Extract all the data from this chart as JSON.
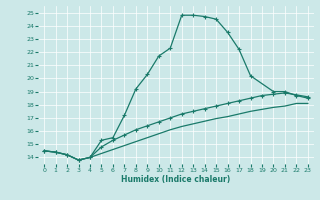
{
  "xlabel": "Humidex (Indice chaleur)",
  "bg_color": "#cce8e8",
  "grid_color": "#ffffff",
  "line_color": "#1a7a6a",
  "xlim": [
    -0.5,
    23.5
  ],
  "ylim": [
    13.5,
    25.5
  ],
  "xticks": [
    0,
    1,
    2,
    3,
    4,
    5,
    6,
    7,
    8,
    9,
    10,
    11,
    12,
    13,
    14,
    15,
    16,
    17,
    18,
    19,
    20,
    21,
    22,
    23
  ],
  "yticks": [
    14,
    15,
    16,
    17,
    18,
    19,
    20,
    21,
    22,
    23,
    24,
    25
  ],
  "line1_x": [
    0,
    1,
    2,
    3,
    4,
    5,
    6,
    7,
    8,
    9,
    10,
    11,
    12,
    13,
    14,
    15,
    16,
    17,
    18,
    20,
    21,
    22,
    23
  ],
  "line1_y": [
    14.5,
    14.4,
    14.2,
    13.8,
    14.0,
    15.3,
    15.5,
    17.2,
    19.2,
    20.3,
    21.7,
    22.3,
    24.8,
    24.8,
    24.7,
    24.5,
    23.5,
    22.2,
    20.2,
    19.0,
    19.0,
    18.7,
    18.5
  ],
  "line2_x": [
    0,
    1,
    2,
    3,
    4,
    5,
    6,
    7,
    8,
    9,
    10,
    11,
    12,
    13,
    14,
    15,
    16,
    17,
    18,
    19,
    20,
    21,
    22,
    23
  ],
  "line2_y": [
    14.5,
    14.4,
    14.2,
    13.8,
    14.0,
    14.8,
    15.3,
    15.7,
    16.1,
    16.4,
    16.7,
    17.0,
    17.3,
    17.5,
    17.7,
    17.9,
    18.1,
    18.3,
    18.5,
    18.7,
    18.8,
    18.9,
    18.75,
    18.6
  ],
  "line3_x": [
    0,
    1,
    2,
    3,
    4,
    5,
    6,
    7,
    8,
    9,
    10,
    11,
    12,
    13,
    14,
    15,
    16,
    17,
    18,
    19,
    20,
    21,
    22,
    23
  ],
  "line3_y": [
    14.5,
    14.4,
    14.2,
    13.8,
    14.0,
    14.3,
    14.6,
    14.9,
    15.2,
    15.5,
    15.8,
    16.1,
    16.35,
    16.55,
    16.75,
    16.95,
    17.1,
    17.3,
    17.5,
    17.65,
    17.8,
    17.9,
    18.1,
    18.1
  ]
}
